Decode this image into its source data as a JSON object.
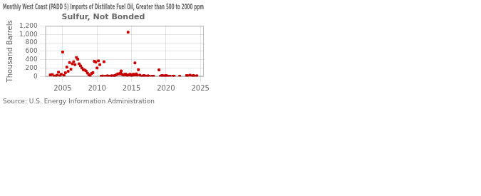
{
  "chart_data": {
    "type": "scatter",
    "title": "Monthly West Coast (PADD 5) Imports of Distillate Fuel Oil, Greater than 500 to 2000 ppm\nSulfur, Not Bonded",
    "ylabel": "Thousand Barrels",
    "annotations": [
      "Source: U.S. Energy Information Administration"
    ],
    "color": "#cc0000",
    "marker": "square",
    "grid": true,
    "xlim": [
      2002.5,
      2025.5
    ],
    "xticks": [
      2005,
      2010,
      2015,
      2020,
      2025
    ],
    "ylim": [
      0,
      1200
    ],
    "yticks": [
      0,
      200,
      400,
      600,
      800,
      {
        "value": 1000,
        "label": "1,000"
      },
      {
        "value": 1200,
        "label": "1,200"
      }
    ],
    "x": [
      2003.2,
      2003.5,
      2003.8,
      2004.0,
      2004.2,
      2004.4,
      2004.6,
      2004.8,
      2005.0,
      2005.2,
      2005.4,
      2005.6,
      2005.8,
      2006.0,
      2006.2,
      2006.4,
      2006.6,
      2006.8,
      2007.0,
      2007.2,
      2007.4,
      2007.6,
      2007.8,
      2008.0,
      2008.2,
      2008.4,
      2008.6,
      2008.8,
      2009.0,
      2009.2,
      2009.4,
      2009.6,
      2009.8,
      2010.0,
      2010.2,
      2010.4,
      2010.6,
      2010.8,
      2011.0,
      2011.2,
      2011.5,
      2011.8,
      2012.0,
      2012.2,
      2012.4,
      2012.5,
      2012.6,
      2012.8,
      2013.0,
      2013.2,
      2013.4,
      2013.5,
      2013.6,
      2013.8,
      2013.9,
      2014.0,
      2014.1,
      2014.2,
      2014.3,
      2014.4,
      2014.5,
      2014.6,
      2014.7,
      2014.8,
      2014.9,
      2015.0,
      2015.1,
      2015.2,
      2015.3,
      2015.4,
      2015.5,
      2015.6,
      2015.7,
      2015.8,
      2016.0,
      2016.2,
      2016.4,
      2016.6,
      2016.8,
      2017.0,
      2017.2,
      2017.4,
      2017.6,
      2018.0,
      2018.2,
      2019.0,
      2019.2,
      2019.4,
      2019.6,
      2019.8,
      2020.0,
      2020.2,
      2020.4,
      2020.6,
      2021.0,
      2021.2,
      2022.0,
      2023.0,
      2023.2,
      2023.5,
      2023.8,
      2024.0,
      2024.2,
      2024.5
    ],
    "values": [
      35,
      45,
      10,
      5,
      30,
      100,
      15,
      50,
      580,
      25,
      85,
      220,
      120,
      330,
      170,
      300,
      350,
      280,
      450,
      410,
      300,
      250,
      200,
      160,
      150,
      130,
      80,
      40,
      10,
      70,
      90,
      360,
      340,
      200,
      370,
      280,
      5,
      10,
      350,
      5,
      15,
      5,
      10,
      15,
      10,
      8,
      20,
      40,
      60,
      60,
      80,
      130,
      50,
      35,
      30,
      40,
      55,
      45,
      30,
      20,
      1050,
      30,
      40,
      50,
      30,
      25,
      20,
      45,
      50,
      35,
      320,
      40,
      60,
      30,
      160,
      30,
      5,
      10,
      20,
      10,
      5,
      15,
      5,
      5,
      5,
      155,
      5,
      20,
      15,
      10,
      20,
      10,
      5,
      5,
      5,
      5,
      5,
      20,
      15,
      30,
      10,
      20,
      5,
      15
    ]
  }
}
